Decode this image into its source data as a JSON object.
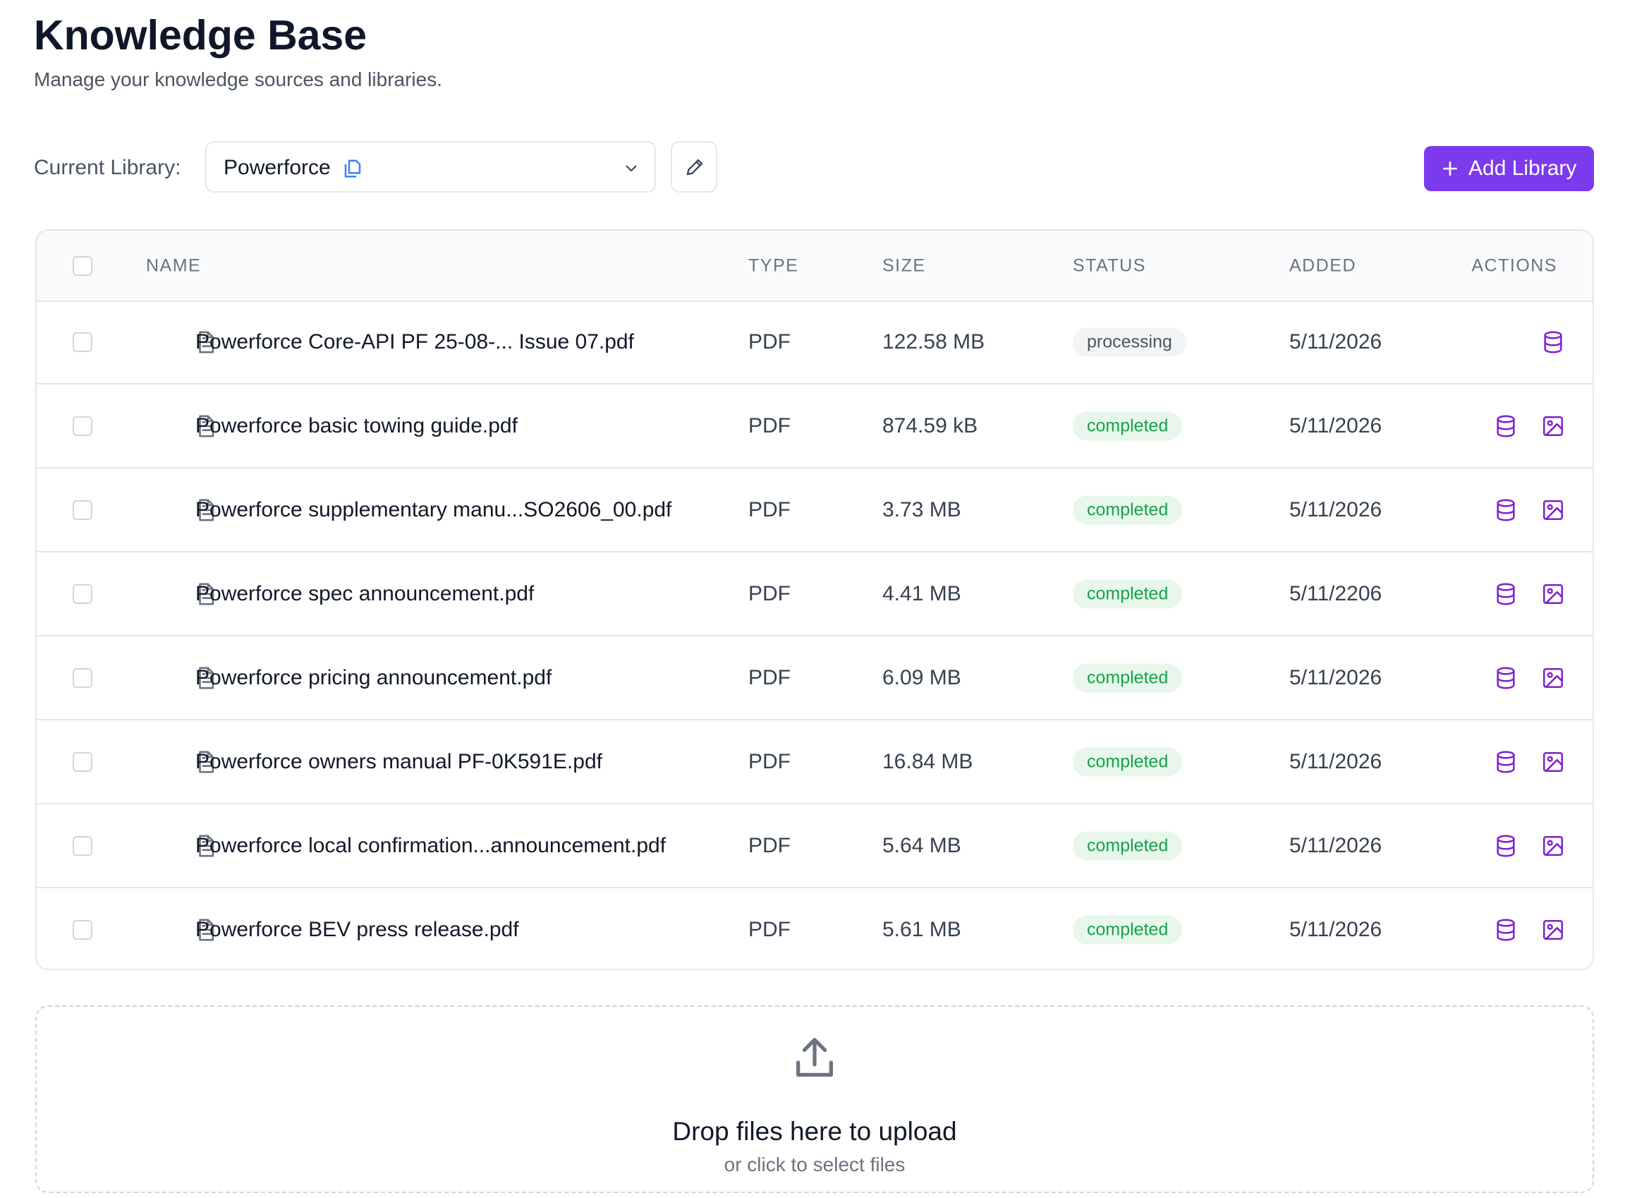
{
  "header": {
    "title": "Knowledge Base",
    "subtitle": "Manage your knowledge sources and libraries."
  },
  "library": {
    "label": "Current Library:",
    "current": "Powerforce"
  },
  "add_button": {
    "label": "Add Library"
  },
  "table": {
    "columns": [
      "NAME",
      "TYPE",
      "SIZE",
      "STATUS",
      "ADDED",
      "ACTIONS"
    ],
    "rows": [
      {
        "name": "Powerforce Core-API PF 25-08-... Issue 07.pdf",
        "type": "PDF",
        "size": "122.58 MB",
        "status": "processing",
        "added": "5/11/2026"
      },
      {
        "name": "Powerforce basic towing guide.pdf",
        "type": "PDF",
        "size": "874.59 kB",
        "status": "completed",
        "added": "5/11/2026"
      },
      {
        "name": "Powerforce supplementary manu...SO2606_00.pdf",
        "type": "PDF",
        "size": "3.73 MB",
        "status": "completed",
        "added": "5/11/2026"
      },
      {
        "name": "Powerforce spec announcement.pdf",
        "type": "PDF",
        "size": "4.41 MB",
        "status": "completed",
        "added": "5/11/2206"
      },
      {
        "name": "Powerforce pricing announcement.pdf",
        "type": "PDF",
        "size": "6.09 MB",
        "status": "completed",
        "added": "5/11/2026"
      },
      {
        "name": "Powerforce owners manual PF-0K591E.pdf",
        "type": "PDF",
        "size": "16.84 MB",
        "status": "completed",
        "added": "5/11/2026"
      },
      {
        "name": "Powerforce local confirmation...announcement.pdf",
        "type": "PDF",
        "size": "5.64 MB",
        "status": "completed",
        "added": "5/11/2026"
      },
      {
        "name": "Powerforce BEV press release.pdf",
        "type": "PDF",
        "size": "5.61 MB",
        "status": "completed",
        "added": "5/11/2026"
      }
    ]
  },
  "dropzone": {
    "title": "Drop files here to upload",
    "hint": "or click to select files"
  }
}
